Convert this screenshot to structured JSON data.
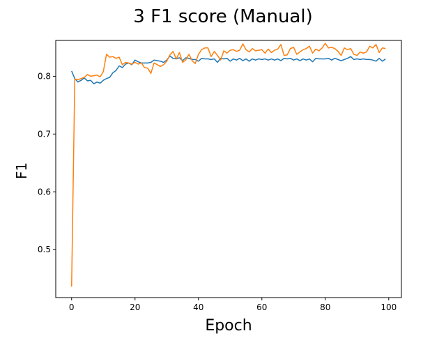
{
  "chart_data": {
    "type": "line",
    "title": "3 F1 score (Manual)",
    "xlabel": "Epoch",
    "ylabel": "F1",
    "xlim": [
      -5,
      104
    ],
    "ylim": [
      0.417,
      0.862
    ],
    "xticks": [
      0,
      20,
      40,
      60,
      80,
      100
    ],
    "yticks": [
      0.5,
      0.6,
      0.7,
      0.8
    ],
    "xtick_labels": [
      "0",
      "20",
      "40",
      "60",
      "80",
      "100"
    ],
    "ytick_labels": [
      "0.5",
      "0.6",
      "0.7",
      "0.8"
    ],
    "grid": false,
    "legend": "none",
    "series": [
      {
        "color": "#1f77b4",
        "x": [
          0,
          1,
          2,
          3,
          4,
          5,
          6,
          7,
          8,
          9,
          10,
          11,
          12,
          13,
          14,
          15,
          16,
          17,
          18,
          19,
          20,
          21,
          22,
          23,
          24,
          25,
          26,
          27,
          28,
          29,
          30,
          31,
          32,
          33,
          34,
          35,
          36,
          37,
          38,
          39,
          40,
          41,
          42,
          43,
          44,
          45,
          46,
          47,
          48,
          49,
          50,
          51,
          52,
          53,
          54,
          55,
          56,
          57,
          58,
          59,
          60,
          61,
          62,
          63,
          64,
          65,
          66,
          67,
          68,
          69,
          70,
          71,
          72,
          73,
          74,
          75,
          76,
          77,
          78,
          79,
          80,
          81,
          82,
          83,
          84,
          85,
          86,
          87,
          88,
          89,
          90,
          91,
          92,
          93,
          94,
          95,
          96,
          97,
          98,
          99
        ],
        "y": [
          0.809,
          0.796,
          0.79,
          0.793,
          0.797,
          0.792,
          0.793,
          0.787,
          0.79,
          0.788,
          0.793,
          0.796,
          0.798,
          0.806,
          0.81,
          0.818,
          0.815,
          0.821,
          0.823,
          0.82,
          0.828,
          0.825,
          0.823,
          0.823,
          0.823,
          0.824,
          0.828,
          0.827,
          0.826,
          0.824,
          0.828,
          0.835,
          0.831,
          0.83,
          0.832,
          0.827,
          0.832,
          0.831,
          0.829,
          0.829,
          0.826,
          0.831,
          0.83,
          0.83,
          0.829,
          0.83,
          0.824,
          0.831,
          0.83,
          0.831,
          0.826,
          0.83,
          0.828,
          0.831,
          0.827,
          0.83,
          0.826,
          0.83,
          0.828,
          0.83,
          0.829,
          0.83,
          0.828,
          0.83,
          0.828,
          0.83,
          0.827,
          0.831,
          0.83,
          0.831,
          0.828,
          0.83,
          0.827,
          0.83,
          0.828,
          0.83,
          0.825,
          0.831,
          0.83,
          0.83,
          0.83,
          0.831,
          0.828,
          0.831,
          0.829,
          0.827,
          0.829,
          0.831,
          0.834,
          0.829,
          0.83,
          0.829,
          0.83,
          0.829,
          0.829,
          0.828,
          0.826,
          0.831,
          0.826,
          0.83
        ],
        "name": ""
      },
      {
        "color": "#ff7f0e",
        "x": [
          0,
          1,
          2,
          3,
          4,
          5,
          6,
          7,
          8,
          9,
          10,
          11,
          12,
          13,
          14,
          15,
          16,
          17,
          18,
          19,
          20,
          21,
          22,
          23,
          24,
          25,
          26,
          27,
          28,
          29,
          30,
          31,
          32,
          33,
          34,
          35,
          36,
          37,
          38,
          39,
          40,
          41,
          42,
          43,
          44,
          45,
          46,
          47,
          48,
          49,
          50,
          51,
          52,
          53,
          54,
          55,
          56,
          57,
          58,
          59,
          60,
          61,
          62,
          63,
          64,
          65,
          66,
          67,
          68,
          69,
          70,
          71,
          72,
          73,
          74,
          75,
          76,
          77,
          78,
          79,
          80,
          81,
          82,
          83,
          84,
          85,
          86,
          87,
          88,
          89,
          90,
          91,
          92,
          93,
          94,
          95,
          96,
          97,
          98,
          99
        ],
        "y": [
          0.436,
          0.795,
          0.794,
          0.796,
          0.798,
          0.803,
          0.8,
          0.801,
          0.802,
          0.799,
          0.808,
          0.838,
          0.833,
          0.834,
          0.831,
          0.833,
          0.82,
          0.824,
          0.823,
          0.821,
          0.824,
          0.821,
          0.823,
          0.815,
          0.814,
          0.805,
          0.823,
          0.82,
          0.817,
          0.82,
          0.826,
          0.837,
          0.843,
          0.83,
          0.841,
          0.824,
          0.828,
          0.838,
          0.827,
          0.822,
          0.838,
          0.846,
          0.849,
          0.849,
          0.834,
          0.843,
          0.836,
          0.828,
          0.844,
          0.84,
          0.845,
          0.846,
          0.843,
          0.845,
          0.856,
          0.846,
          0.842,
          0.848,
          0.844,
          0.845,
          0.846,
          0.84,
          0.847,
          0.841,
          0.845,
          0.847,
          0.855,
          0.836,
          0.837,
          0.848,
          0.85,
          0.838,
          0.842,
          0.846,
          0.848,
          0.852,
          0.84,
          0.847,
          0.844,
          0.849,
          0.857,
          0.849,
          0.85,
          0.848,
          0.843,
          0.836,
          0.849,
          0.846,
          0.848,
          0.838,
          0.836,
          0.842,
          0.84,
          0.842,
          0.852,
          0.849,
          0.855,
          0.841,
          0.849,
          0.848
        ],
        "name": ""
      }
    ]
  }
}
